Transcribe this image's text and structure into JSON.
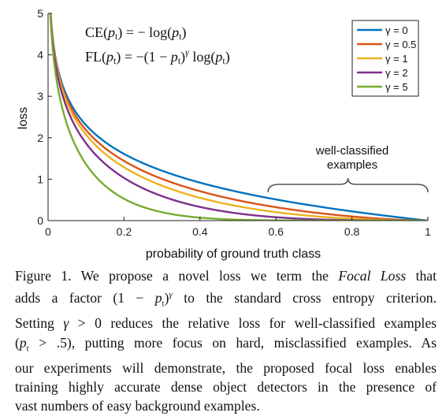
{
  "chart_data": {
    "type": "line",
    "xlabel": "probability of ground truth class",
    "ylabel": "loss",
    "xlim": [
      0,
      1
    ],
    "ylim": [
      0,
      5
    ],
    "xticks": [
      "0",
      "0.2",
      "0.4",
      "0.6",
      "0.8",
      "1"
    ],
    "xtick_values": [
      0,
      0.2,
      0.4,
      0.6,
      0.8,
      1
    ],
    "yticks": [
      "0",
      "1",
      "2",
      "3",
      "4",
      "5"
    ],
    "ytick_values": [
      0,
      1,
      2,
      3,
      4,
      5
    ],
    "grid": false,
    "legend_position": "top-right",
    "function": "FL(p) = -(1-p)^gamma * log(p)",
    "series": [
      {
        "name": "γ = 0",
        "gamma": 0,
        "color": "#0072bd"
      },
      {
        "name": "γ = 0.5",
        "gamma": 0.5,
        "color": "#d95319"
      },
      {
        "name": "γ = 1",
        "gamma": 1,
        "color": "#edb120"
      },
      {
        "name": "γ = 2",
        "gamma": 2,
        "color": "#7e2f8e"
      },
      {
        "name": "γ = 5",
        "gamma": 5,
        "color": "#77ac30"
      }
    ],
    "formulas": {
      "ce": "CE(pt) = − log(pt)",
      "fl": "FL(pt) = −(1 − pt)γ log(pt)"
    },
    "annotation": {
      "line1": "well-classified",
      "line2": "examples",
      "x_start": 0.6,
      "x_end": 1.0
    }
  },
  "caption": {
    "lines": [
      "Figure 1. We propose a novel loss we term the Focal Loss that",
      "adds a factor (1 − pt)γ to the standard cross entropy criterion.",
      "Setting γ > 0 reduces the relative loss for well-classified examples",
      "(pt > .5), putting more focus on hard, misclassified examples. As",
      "our experiments will demonstrate, the proposed focal loss enables",
      "training highly accurate dense object detectors in the presence of",
      "vast numbers of easy background examples."
    ]
  }
}
